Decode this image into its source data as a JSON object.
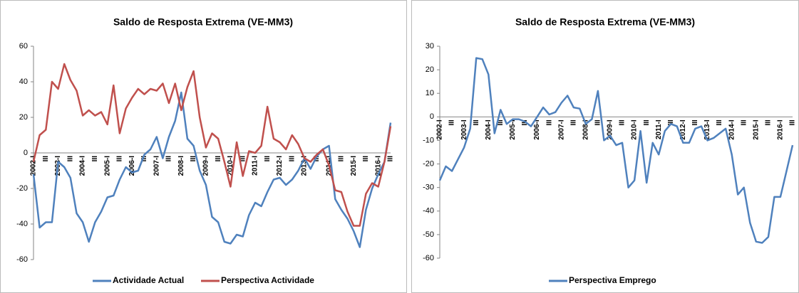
{
  "chart_data": [
    {
      "type": "line",
      "title": "Saldo de Resposta Extrema (VE-MM3)",
      "categories": [
        "2002-I",
        null,
        "III",
        null,
        "2003-I",
        null,
        "III",
        null,
        "2004-I",
        null,
        "III",
        null,
        "2005-I",
        null,
        "III",
        null,
        "2006-I",
        null,
        "III",
        null,
        "2007-I",
        null,
        "III",
        null,
        "2008-I",
        null,
        "III",
        null,
        "2009-I",
        null,
        "III",
        null,
        "2010-I",
        null,
        "III",
        null,
        "2011-I",
        null,
        "III",
        null,
        "2012-I",
        null,
        "III",
        null,
        "2013-I",
        null,
        "III",
        null,
        "2014-I",
        null,
        "III",
        null,
        "2015-I",
        null,
        "III",
        null,
        "2016-I",
        null,
        "III"
      ],
      "series": [
        {
          "name": "Actividade Actual",
          "color": "#4f81bd",
          "values": [
            -12,
            -42,
            -39,
            -39,
            -5,
            -8,
            -14,
            -34,
            -39,
            -50,
            -39,
            -33,
            -25,
            -24,
            -15,
            -8,
            -11,
            -10,
            -1,
            2,
            9,
            -3,
            9,
            18,
            34,
            8,
            4,
            -10,
            -18,
            -36,
            -39,
            -50,
            -51,
            -46,
            -47,
            -35,
            -28,
            -30,
            -22,
            -15,
            -14,
            -18,
            -15,
            -10,
            -3,
            -9,
            -2,
            2,
            4,
            -26,
            -32,
            -37,
            -44,
            -53,
            -32,
            -20,
            -12,
            -5,
            17
          ]
        },
        {
          "name": "Perspectiva Actividade",
          "color": "#c0504d",
          "values": [
            -5,
            10,
            13,
            40,
            36,
            50,
            41,
            35,
            21,
            24,
            21,
            23,
            16,
            38,
            11,
            25,
            31,
            36,
            33,
            36,
            35,
            39,
            28,
            39,
            24,
            37,
            46,
            20,
            3,
            11,
            8,
            -5,
            -19,
            6,
            -13,
            1,
            0,
            4,
            26,
            8,
            6,
            2,
            10,
            5,
            -3,
            -5,
            -1,
            2,
            -7,
            -21,
            -22,
            -33,
            -41,
            -41,
            -23,
            -17,
            -19,
            -5,
            15
          ]
        }
      ],
      "ylim": [
        -60,
        60
      ],
      "yticks": [
        -60,
        -40,
        -20,
        0,
        20,
        40,
        60
      ],
      "legend": "bottom"
    },
    {
      "type": "line",
      "title": "Saldo de Resposta Extrema (VE-MM3)",
      "categories": [
        "2002-I",
        null,
        "III",
        null,
        "2003-I",
        null,
        "III",
        null,
        "2004-I",
        null,
        "III",
        null,
        "2005-I",
        null,
        "III",
        null,
        "2006-I",
        null,
        "III",
        null,
        "2007-I",
        null,
        "III",
        null,
        "2008-I",
        null,
        "III",
        null,
        "2009-I",
        null,
        "III",
        null,
        "2010-I",
        null,
        "III",
        null,
        "2011-I",
        null,
        "III",
        null,
        "2012-I",
        null,
        "III",
        null,
        "2013-I",
        null,
        "III",
        null,
        "2014-I",
        null,
        "III",
        null,
        "2015-I",
        null,
        "III",
        null,
        "2016-I",
        null,
        "III"
      ],
      "series": [
        {
          "name": "Perspectiva Emprego",
          "color": "#4f81bd",
          "values": [
            -27,
            -21,
            -23,
            -18,
            -13,
            -5,
            25,
            24.5,
            18,
            -7,
            3,
            -3,
            -1,
            -1,
            -2,
            -4,
            0,
            4,
            1,
            2,
            6,
            9,
            4,
            3.5,
            -3,
            -1,
            11,
            -10,
            -8,
            -12,
            -11,
            -30,
            -27,
            -6,
            -28,
            -11,
            -16,
            -6,
            -3,
            -4,
            -11,
            -11,
            -5,
            -4,
            -10,
            -9,
            -7,
            -5,
            -16,
            -33,
            -30,
            -45,
            -53,
            -53.5,
            -51,
            -34,
            -34,
            -23,
            -12
          ]
        }
      ],
      "ylim": [
        -60,
        30
      ],
      "yticks": [
        -60,
        -50,
        -40,
        -30,
        -20,
        -10,
        0,
        10,
        20,
        30
      ],
      "legend": "bottom"
    }
  ]
}
